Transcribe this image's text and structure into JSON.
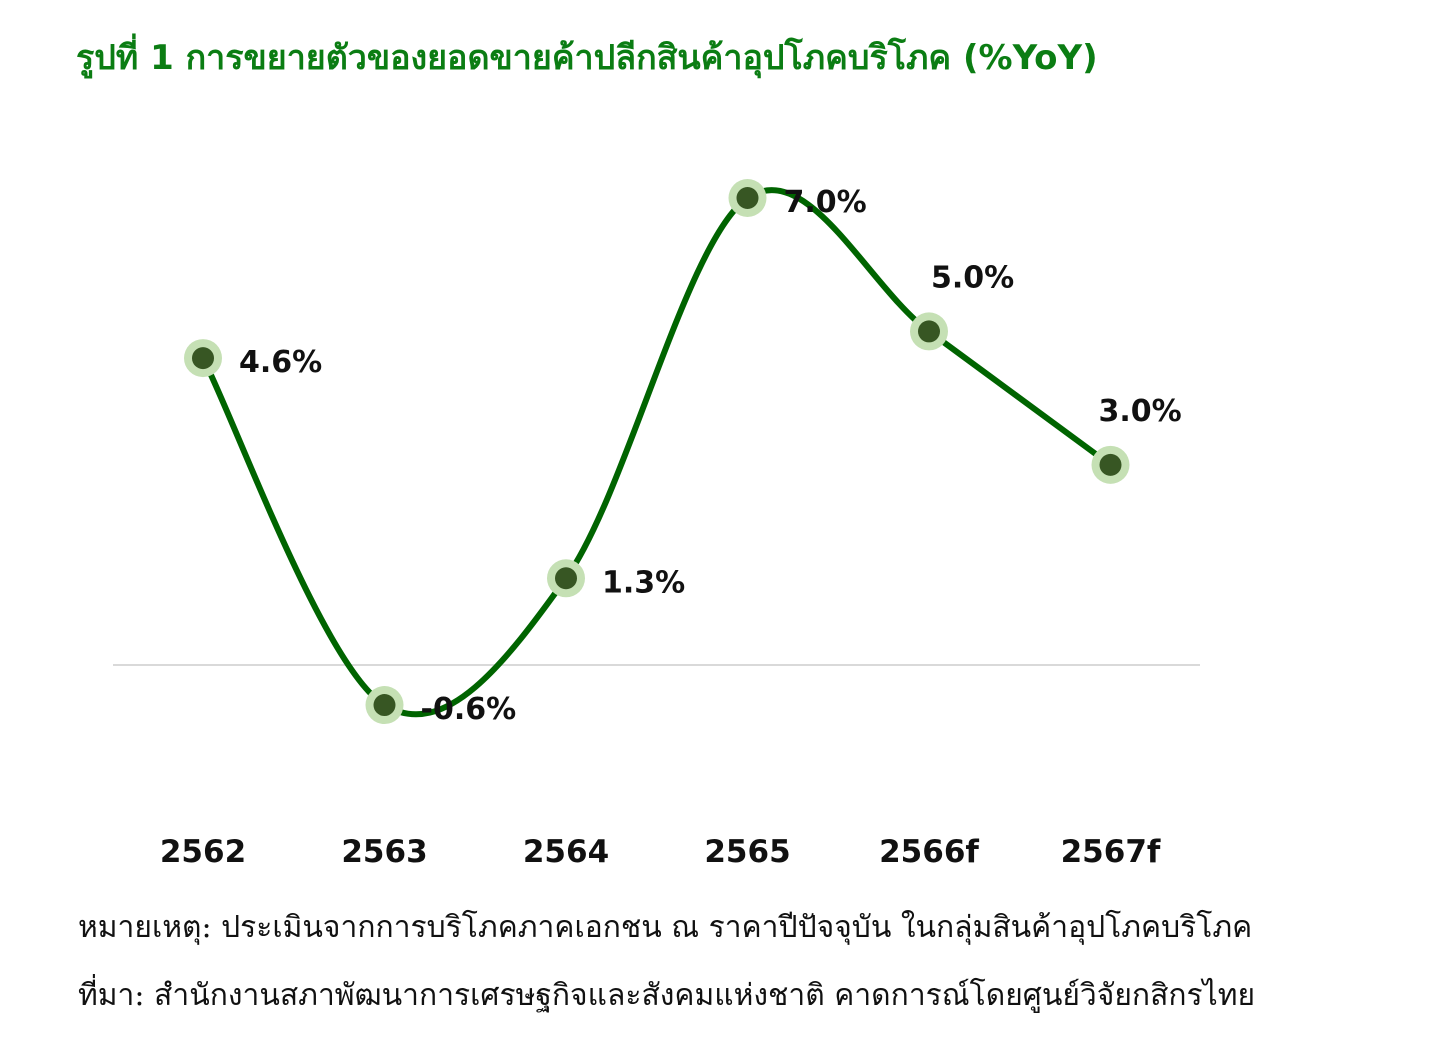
{
  "title": "รูปที่ 1 การขยายตัวของยอดขายค้าปลีกสินค้าอุปโภคบริโภค (%YoY)",
  "chart_data": {
    "type": "line",
    "categories": [
      "2562",
      "2563",
      "2564",
      "2565",
      "2566f",
      "2567f"
    ],
    "values": [
      4.6,
      -0.6,
      1.3,
      7.0,
      5.0,
      3.0
    ],
    "data_labels": [
      "4.6%",
      "-0.6%",
      "1.3%",
      "7.0%",
      "5.0%",
      "3.0%"
    ],
    "ylim": [
      -1.5,
      7.5
    ],
    "zero_line": true,
    "grid": false,
    "smooth": true,
    "colors": {
      "line": "#006400",
      "marker": "#375623",
      "marker_halo": "#c5e0b4",
      "zero_line": "#d9d9d9",
      "title": "#0b7d13"
    }
  },
  "notes": {
    "remark": "หมายเหตุ: ประเมินจากการบริโภคภาคเอกชน ณ ราคาปีปัจจุบัน ในกลุ่มสินค้าอุปโภคบริโภค",
    "source": "ที่มา: สำนักงานสภาพัฒนาการเศรษฐกิจและสังคมแห่งชาติ คาดการณ์โดยศูนย์วิจัยกสิกรไทย"
  }
}
